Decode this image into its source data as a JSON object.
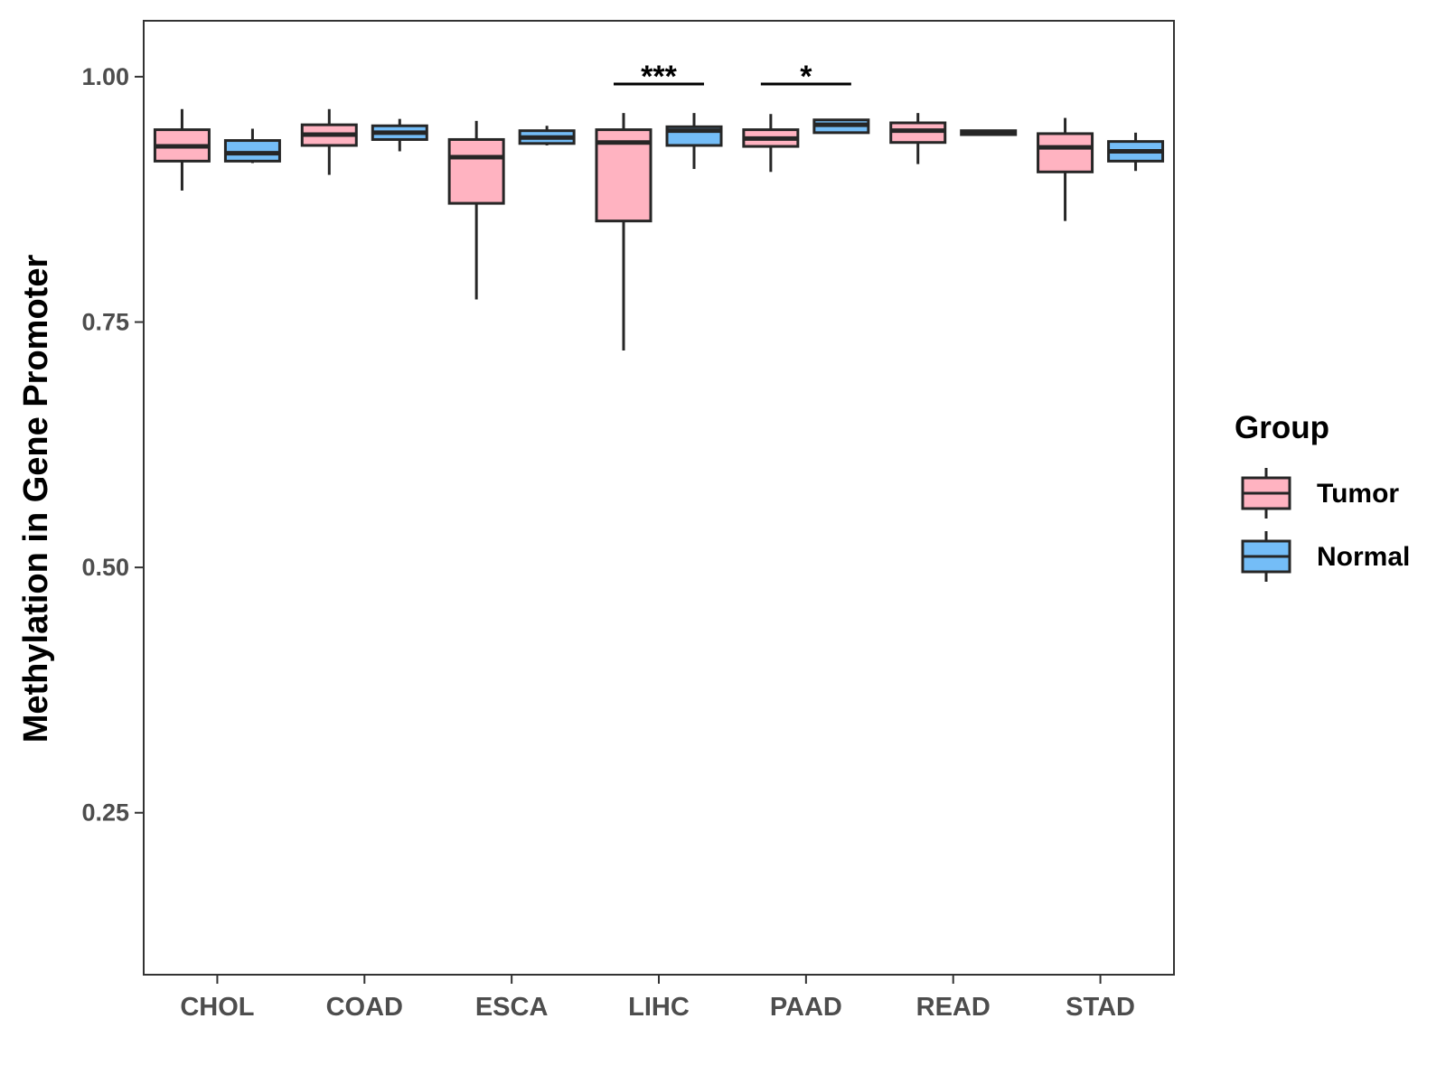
{
  "chart_data": {
    "type": "boxplot",
    "title": "",
    "xlabel": "",
    "ylabel": "Methylation in Gene Promoter",
    "ylim": [
      0.085,
      1.057
    ],
    "yticks": [
      0.25,
      0.5,
      0.75,
      1.0
    ],
    "ytick_labels": [
      "0.25",
      "0.50",
      "0.75",
      "1.00"
    ],
    "categories": [
      "CHOL",
      "COAD",
      "ESCA",
      "LIHC",
      "PAAD",
      "READ",
      "STAD"
    ],
    "legend": {
      "title": "Group",
      "position": "right",
      "entries": [
        {
          "label": "Tumor",
          "color": "#FFB3C1"
        },
        {
          "label": "Normal",
          "color": "#74BDF7"
        }
      ]
    },
    "series": [
      {
        "name": "Tumor",
        "color": "#FFB3C1",
        "boxes": [
          {
            "category": "CHOL",
            "min": 0.884,
            "q1": 0.914,
            "median": 0.929,
            "q3": 0.946,
            "max": 0.967
          },
          {
            "category": "COAD",
            "min": 0.9,
            "q1": 0.93,
            "median": 0.941,
            "q3": 0.951,
            "max": 0.967
          },
          {
            "category": "ESCA",
            "min": 0.773,
            "q1": 0.871,
            "median": 0.918,
            "q3": 0.936,
            "max": 0.955
          },
          {
            "category": "LIHC",
            "min": 0.721,
            "q1": 0.853,
            "median": 0.933,
            "q3": 0.946,
            "max": 0.963
          },
          {
            "category": "PAAD",
            "min": 0.903,
            "q1": 0.929,
            "median": 0.937,
            "q3": 0.946,
            "max": 0.962
          },
          {
            "category": "READ",
            "min": 0.911,
            "q1": 0.933,
            "median": 0.945,
            "q3": 0.953,
            "max": 0.963
          },
          {
            "category": "STAD",
            "min": 0.853,
            "q1": 0.903,
            "median": 0.928,
            "q3": 0.942,
            "max": 0.958
          }
        ]
      },
      {
        "name": "Normal",
        "color": "#74BDF7",
        "boxes": [
          {
            "category": "CHOL",
            "min": 0.912,
            "q1": 0.914,
            "median": 0.922,
            "q3": 0.935,
            "max": 0.947
          },
          {
            "category": "COAD",
            "min": 0.924,
            "q1": 0.936,
            "median": 0.943,
            "q3": 0.95,
            "max": 0.957
          },
          {
            "category": "ESCA",
            "min": 0.93,
            "q1": 0.932,
            "median": 0.938,
            "q3": 0.945,
            "max": 0.95
          },
          {
            "category": "LIHC",
            "min": 0.906,
            "q1": 0.93,
            "median": 0.945,
            "q3": 0.949,
            "max": 0.963
          },
          {
            "category": "PAAD",
            "min": 0.942,
            "q1": 0.943,
            "median": 0.951,
            "q3": 0.956,
            "max": 0.957
          },
          {
            "category": "READ",
            "min": 0.941,
            "q1": 0.941,
            "median": 0.943,
            "q3": 0.945,
            "max": 0.945
          },
          {
            "category": "STAD",
            "min": 0.904,
            "q1": 0.914,
            "median": 0.924,
            "q3": 0.934,
            "max": 0.943
          }
        ]
      }
    ],
    "annotations": [
      {
        "category": "LIHC",
        "label": "***"
      },
      {
        "category": "PAAD",
        "label": "*"
      }
    ]
  }
}
